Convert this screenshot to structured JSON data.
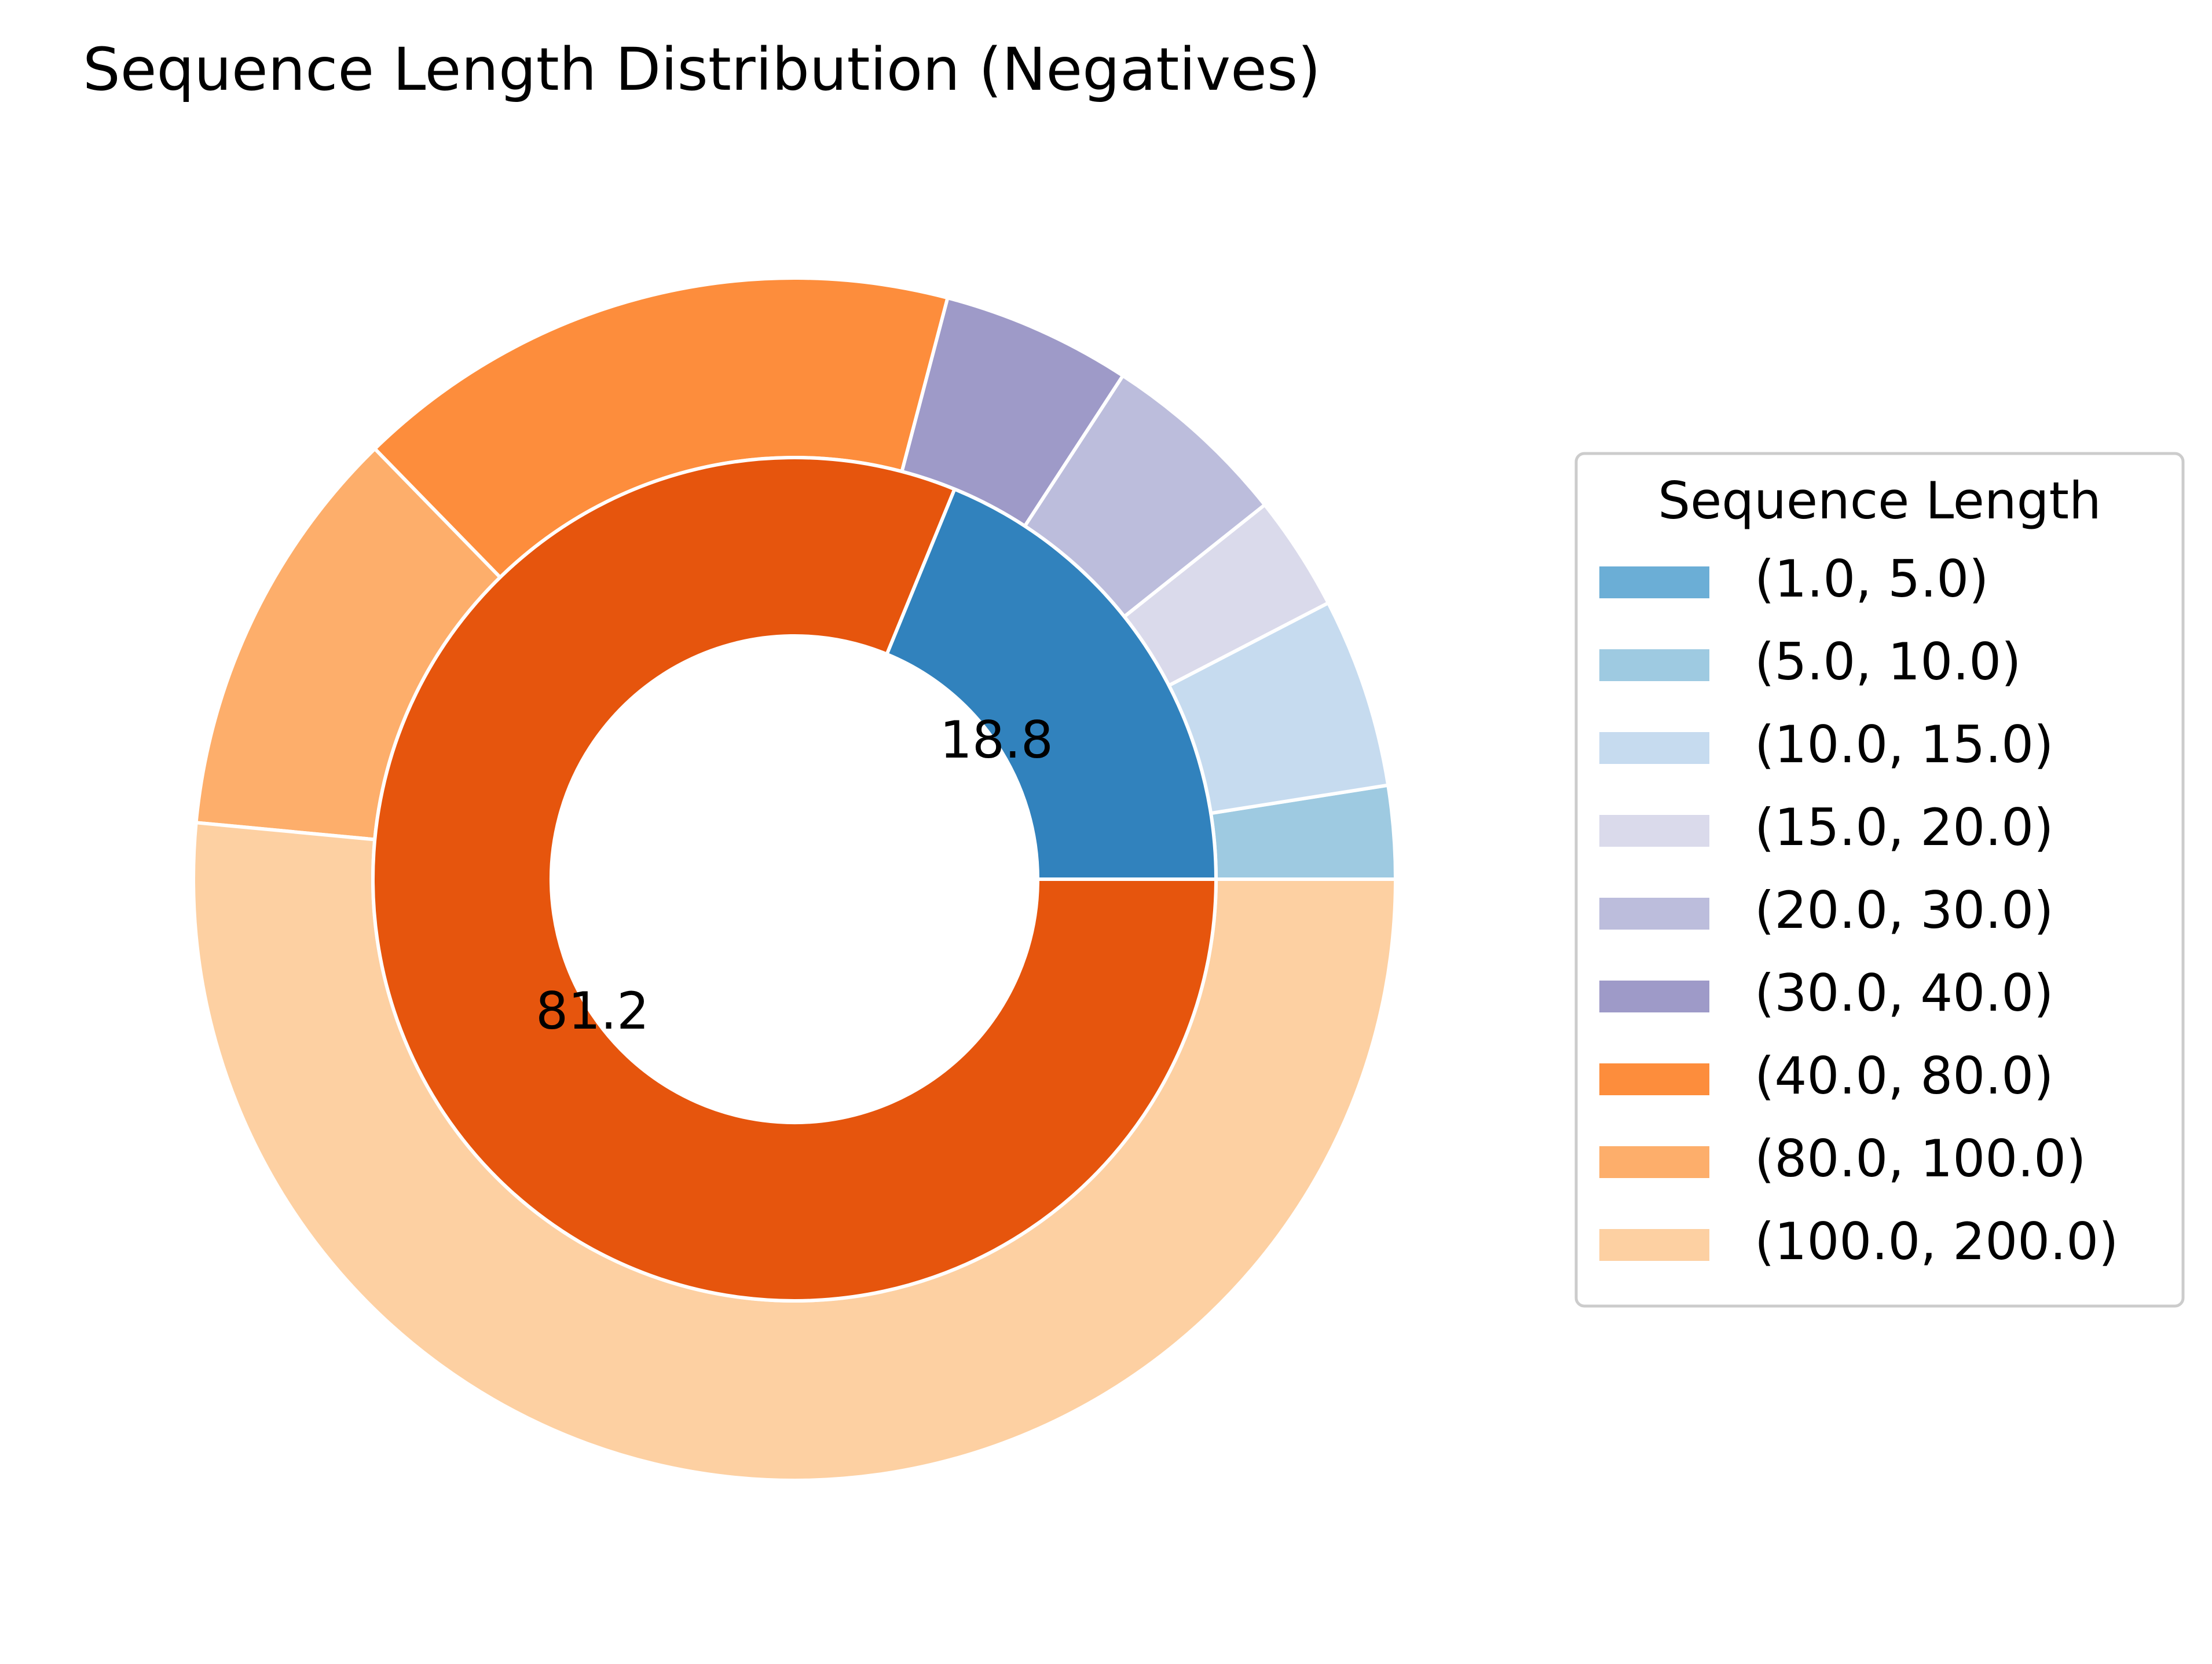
{
  "chart_data": {
    "type": "pie",
    "title": "Sequence Length Distribution (Negatives)",
    "inner_ring": {
      "slices": [
        {
          "value": 18.8,
          "label": "18.8",
          "color": "#3182bd"
        },
        {
          "value": 81.2,
          "label": "81.2",
          "color": "#e6550d"
        }
      ]
    },
    "outer_ring": {
      "slices": [
        {
          "category": "(1.0, 5.0)",
          "value": 0,
          "color": "#6baed6"
        },
        {
          "category": "(5.0, 10.0)",
          "value": 2.5,
          "color": "#9ecae1"
        },
        {
          "category": "(10.0, 15.0)",
          "value": 5.1,
          "color": "#c6dbef"
        },
        {
          "category": "(15.0, 20.0)",
          "value": 3.1,
          "color": "#dadaeb"
        },
        {
          "category": "(20.0, 30.0)",
          "value": 5.1,
          "color": "#bcbddc"
        },
        {
          "category": "(30.0, 40.0)",
          "value": 5.1,
          "color": "#9e9ac8"
        },
        {
          "category": "(40.0, 80.0)",
          "value": 16.4,
          "color": "#fd8d3c"
        },
        {
          "category": "(80.0, 100.0)",
          "value": 11.2,
          "color": "#fdae6b"
        },
        {
          "category": "(100.0, 200.0)",
          "value": 51.5,
          "color": "#fdd0a2"
        }
      ]
    },
    "legend": {
      "title": "Sequence Length",
      "placement": "right",
      "entries": [
        "(1.0, 5.0)",
        "(5.0, 10.0)",
        "(10.0, 15.0)",
        "(15.0, 20.0)",
        "(20.0, 30.0)",
        "(30.0, 40.0)",
        "(40.0, 80.0)",
        "(80.0, 100.0)",
        "(100.0, 200.0)"
      ]
    }
  }
}
